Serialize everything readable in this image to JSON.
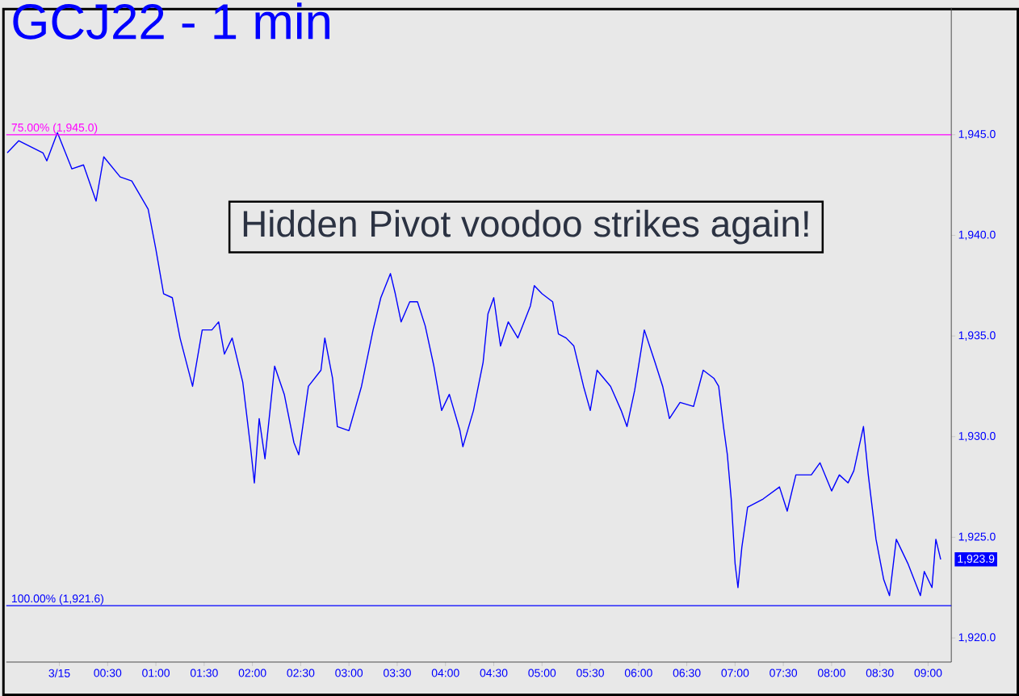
{
  "chart_data": {
    "type": "line",
    "title": "GCJ22 - 1 min",
    "x": [
      -0.54,
      -0.42,
      -0.17,
      -0.13,
      -0.02,
      0.13,
      0.25,
      0.38,
      0.46,
      0.63,
      0.75,
      0.92,
      1.0,
      1.08,
      1.17,
      1.25,
      1.38,
      1.48,
      1.58,
      1.65,
      1.71,
      1.79,
      1.9,
      1.98,
      2.02,
      2.07,
      2.13,
      2.23,
      2.33,
      2.43,
      2.48,
      2.58,
      2.71,
      2.75,
      2.83,
      2.88,
      3.0,
      3.13,
      3.25,
      3.33,
      3.43,
      3.48,
      3.54,
      3.63,
      3.71,
      3.79,
      3.88,
      3.96,
      4.04,
      4.15,
      4.18,
      4.29,
      4.39,
      4.44,
      4.5,
      4.57,
      4.65,
      4.75,
      4.88,
      4.92,
      5.0,
      5.11,
      5.17,
      5.25,
      5.33,
      5.43,
      5.5,
      5.57,
      5.71,
      5.82,
      5.88,
      5.96,
      6.06,
      6.17,
      6.25,
      6.32,
      6.43,
      6.57,
      6.67,
      6.78,
      6.83,
      6.88,
      6.92,
      6.96,
      7.0,
      7.03,
      7.07,
      7.13,
      7.29,
      7.46,
      7.54,
      7.63,
      7.79,
      7.88,
      8.0,
      8.08,
      8.17,
      8.23,
      8.33,
      8.38,
      8.46,
      8.54,
      8.6,
      8.67,
      8.79,
      8.92,
      8.96,
      9.04,
      9.08,
      9.13
    ],
    "series": [
      {
        "color": "#0000ff",
        "values": [
          1944.1,
          1944.7,
          1944.1,
          1943.7,
          1945.1,
          1943.3,
          1943.5,
          1941.7,
          1943.9,
          1942.9,
          1942.7,
          1941.3,
          1939.3,
          1937.1,
          1936.9,
          1934.9,
          1932.5,
          1935.3,
          1935.3,
          1935.7,
          1934.1,
          1934.9,
          1932.7,
          1929.5,
          1927.7,
          1930.9,
          1928.9,
          1933.5,
          1932.1,
          1929.7,
          1929.1,
          1932.5,
          1933.3,
          1934.9,
          1932.9,
          1930.5,
          1930.3,
          1932.5,
          1935.3,
          1936.9,
          1938.1,
          1937.1,
          1935.7,
          1936.7,
          1936.7,
          1935.5,
          1933.5,
          1931.3,
          1932.1,
          1930.3,
          1929.5,
          1931.3,
          1933.7,
          1936.1,
          1936.9,
          1934.5,
          1935.7,
          1934.9,
          1936.5,
          1937.5,
          1937.1,
          1936.7,
          1935.1,
          1934.9,
          1934.5,
          1932.5,
          1931.3,
          1933.3,
          1932.5,
          1931.3,
          1930.5,
          1932.3,
          1935.3,
          1933.7,
          1932.5,
          1930.9,
          1931.7,
          1931.5,
          1933.3,
          1932.9,
          1932.5,
          1930.5,
          1929.1,
          1926.9,
          1923.7,
          1922.5,
          1924.5,
          1926.5,
          1926.9,
          1927.5,
          1926.3,
          1928.1,
          1928.1,
          1928.7,
          1927.3,
          1928.1,
          1927.7,
          1928.3,
          1930.5,
          1928.1,
          1924.9,
          1922.9,
          1922.1,
          1924.9,
          1923.7,
          1922.1,
          1923.3,
          1922.5,
          1924.9,
          1923.9
        ]
      }
    ],
    "xlim": [
      -0.55,
      9.24
    ],
    "ylim": [
      1918.8,
      1951.3
    ],
    "xticks": [
      {
        "value": 0,
        "label": "3/15"
      },
      {
        "value": 0.5,
        "label": "00:30"
      },
      {
        "value": 1,
        "label": "01:00"
      },
      {
        "value": 1.5,
        "label": "01:30"
      },
      {
        "value": 2,
        "label": "02:00"
      },
      {
        "value": 2.5,
        "label": "02:30"
      },
      {
        "value": 3,
        "label": "03:00"
      },
      {
        "value": 3.5,
        "label": "03:30"
      },
      {
        "value": 4,
        "label": "04:00"
      },
      {
        "value": 4.5,
        "label": "04:30"
      },
      {
        "value": 5,
        "label": "05:00"
      },
      {
        "value": 5.5,
        "label": "05:30"
      },
      {
        "value": 6,
        "label": "06:00"
      },
      {
        "value": 6.5,
        "label": "06:30"
      },
      {
        "value": 7,
        "label": "07:00"
      },
      {
        "value": 7.5,
        "label": "07:30"
      },
      {
        "value": 8,
        "label": "08:00"
      },
      {
        "value": 8.5,
        "label": "08:30"
      },
      {
        "value": 9,
        "label": "09:00"
      }
    ],
    "yticks": [
      {
        "value": 1920,
        "label": "1,920.0"
      },
      {
        "value": 1925,
        "label": "1,925.0"
      },
      {
        "value": 1930,
        "label": "1,930.0"
      },
      {
        "value": 1935,
        "label": "1,935.0"
      },
      {
        "value": 1940,
        "label": "1,940.0"
      },
      {
        "value": 1945,
        "label": "1,945.0"
      }
    ],
    "ref_lines": [
      {
        "axis": "y",
        "value": 1945.0,
        "label": "75.00% (1,945.0)",
        "color": "#ff00ff"
      },
      {
        "axis": "y",
        "value": 1921.6,
        "label": "100.00% (1,921.6)",
        "color": "#0000ff"
      }
    ],
    "annotations": [
      "Hidden Pivot voodoo strikes again!",
      {
        "text": "1,923.9",
        "x": 9.13,
        "y": 1923.9
      }
    ]
  }
}
